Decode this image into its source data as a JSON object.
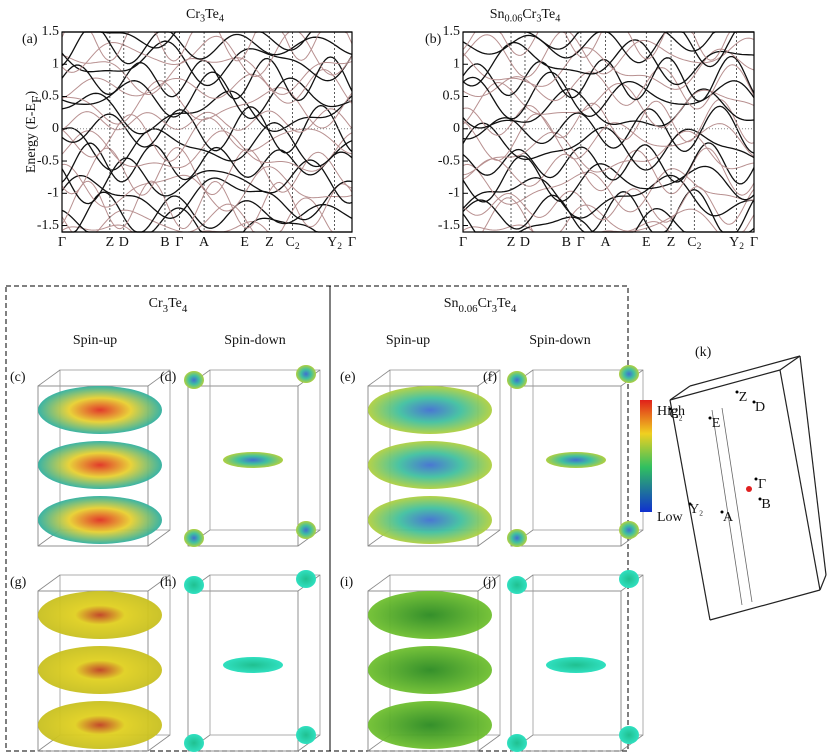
{
  "band_panels": [
    {
      "label": "(a)",
      "title": [
        {
          "text": "Cr"
        },
        {
          "text": "3",
          "sub": true
        },
        {
          "text": "Te"
        },
        {
          "text": "4",
          "sub": true
        }
      ],
      "ylim": [
        -1.6,
        1.5
      ],
      "yticks": [
        1.5,
        1,
        0.5,
        0,
        -0.5,
        -1,
        -1.5
      ],
      "k_labels": [
        {
          "text": "Γ"
        },
        {
          "text": "Z"
        },
        {
          "text": "D"
        },
        {
          "text": "B"
        },
        {
          "text": "Γ"
        },
        {
          "text": "A"
        },
        {
          "text": "E"
        },
        {
          "text": "Z"
        },
        {
          "text": "C",
          "sub": "2"
        },
        {
          "text": "Y",
          "sub": "2"
        },
        {
          "text": "Γ"
        }
      ]
    },
    {
      "label": "(b)",
      "title": [
        {
          "text": "Sn"
        },
        {
          "text": "0.06",
          "sub": true
        },
        {
          "text": "Cr"
        },
        {
          "text": "3",
          "sub": true
        },
        {
          "text": "Te"
        },
        {
          "text": "4",
          "sub": true
        }
      ],
      "ylim": [
        -1.6,
        1.5
      ],
      "yticks": [
        1.5,
        1,
        0.5,
        0,
        -0.5,
        -1,
        -1.5
      ],
      "k_labels": [
        {
          "text": "Γ"
        },
        {
          "text": "Z"
        },
        {
          "text": "D"
        },
        {
          "text": "B"
        },
        {
          "text": "Γ"
        },
        {
          "text": "A"
        },
        {
          "text": "E"
        },
        {
          "text": "Z"
        },
        {
          "text": "C",
          "sub": "2"
        },
        {
          "text": "Y",
          "sub": "2"
        },
        {
          "text": "Γ"
        }
      ]
    }
  ],
  "y_axis_label": [
    {
      "text": "Energy  (E-E"
    },
    {
      "text": "F",
      "sub": true
    },
    {
      "text": ")"
    }
  ],
  "fermi_groups": [
    {
      "title": [
        {
          "text": "Cr"
        },
        {
          "text": "3",
          "sub": true
        },
        {
          "text": "Te"
        },
        {
          "text": "4",
          "sub": true
        }
      ],
      "columns": [
        "Spin-up",
        "Spin-down"
      ],
      "panels": [
        "(c)",
        "(d)",
        "(g)",
        "(h)"
      ]
    },
    {
      "title": [
        {
          "text": "Sn"
        },
        {
          "text": "0.06",
          "sub": true
        },
        {
          "text": "Cr"
        },
        {
          "text": "3",
          "sub": true
        },
        {
          "text": "Te"
        },
        {
          "text": "4",
          "sub": true
        }
      ],
      "columns": [
        "Spin-up",
        "Spin-down"
      ],
      "panels": [
        "(e)",
        "(f)",
        "(i)",
        "(j)"
      ]
    }
  ],
  "colorbar": {
    "high": "High",
    "low": "Low"
  },
  "brillouin_zone": {
    "label": "(k)",
    "points": [
      {
        "text": "Z"
      },
      {
        "text": "C",
        "sub": "2"
      },
      {
        "text": "D"
      },
      {
        "text": "E"
      },
      {
        "text": "Γ"
      },
      {
        "text": "B"
      },
      {
        "text": "Y",
        "sub": "2"
      },
      {
        "text": "A"
      }
    ]
  }
}
